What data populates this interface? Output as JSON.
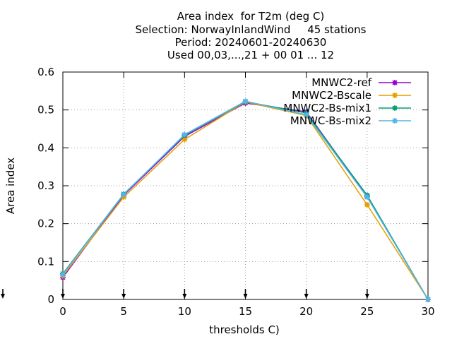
{
  "chart_data": {
    "type": "line",
    "title_lines": [
      "Area index  for T2m (deg C)",
      "Selection: NorwayInlandWind     45 stations",
      "Period: 20240601-20240630",
      "Used 00,03,...,21 + 00 01 ... 12"
    ],
    "xlabel": "thresholds C)",
    "ylabel": "Area index",
    "x": [
      0,
      5,
      10,
      15,
      20,
      25,
      30
    ],
    "xlim": [
      0,
      30
    ],
    "ylim": [
      0,
      0.6
    ],
    "xticks": [
      "0",
      "5",
      "10",
      "15",
      "20",
      "25",
      "30"
    ],
    "yticks": [
      "0",
      "0.1",
      "0.2",
      "0.3",
      "0.4",
      "0.5",
      "0.6"
    ],
    "grid": true,
    "legend_position": "top-right",
    "series": [
      {
        "name": "MNWC2-ref",
        "color": "#9400d3",
        "values": [
          0.058,
          0.275,
          0.43,
          0.518,
          0.495,
          0.272,
          0.0
        ]
      },
      {
        "name": "MNWC2-Bscale",
        "color": "#e69f00",
        "values": [
          0.062,
          0.27,
          0.422,
          0.521,
          0.485,
          0.25,
          0.0
        ]
      },
      {
        "name": "MNWC2-Bs-mix1",
        "color": "#009e73",
        "values": [
          0.068,
          0.278,
          0.433,
          0.522,
          0.492,
          0.275,
          0.0
        ]
      },
      {
        "name": "MNWC-Bs-mix2",
        "color": "#56b4e9",
        "values": [
          0.066,
          0.277,
          0.435,
          0.523,
          0.487,
          0.27,
          0.0
        ]
      }
    ]
  }
}
